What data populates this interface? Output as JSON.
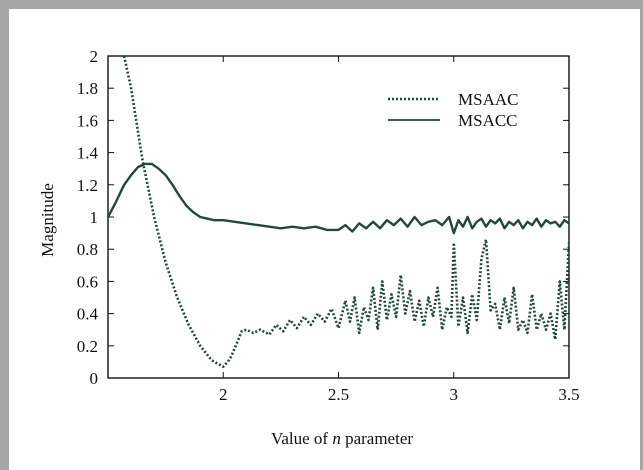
{
  "chart_data": {
    "type": "line",
    "xlabel_prefix": "Value of ",
    "xlabel_var": "n",
    "xlabel_suffix": " parameter",
    "ylabel": "Magnitude",
    "xlim": [
      1.5,
      3.5
    ],
    "ylim": [
      0,
      2
    ],
    "xticks": [
      2,
      2.5,
      3,
      3.5
    ],
    "xtick_labels": [
      "2",
      "2.5",
      "3",
      "3.5"
    ],
    "yticks": [
      0,
      0.2,
      0.4,
      0.6,
      0.8,
      1,
      1.2,
      1.4,
      1.6,
      1.8,
      2
    ],
    "ytick_labels": [
      "0",
      "0.2",
      "0.4",
      "0.6",
      "0.8",
      "1",
      "1.2",
      "1.4",
      "1.6",
      "1.8",
      "2"
    ],
    "legend_position": "top-right",
    "grid": false,
    "line_color": "#1e4a3a",
    "series": [
      {
        "name": "MSAAC",
        "style": "dotted",
        "x": [
          1.57,
          1.6,
          1.65,
          1.7,
          1.75,
          1.8,
          1.85,
          1.9,
          1.95,
          2.0,
          2.03,
          2.06,
          2.08,
          2.1,
          2.13,
          2.16,
          2.2,
          2.23,
          2.26,
          2.29,
          2.32,
          2.35,
          2.38,
          2.41,
          2.44,
          2.47,
          2.5,
          2.53,
          2.55,
          2.57,
          2.59,
          2.61,
          2.63,
          2.65,
          2.67,
          2.69,
          2.71,
          2.73,
          2.75,
          2.77,
          2.79,
          2.81,
          2.83,
          2.85,
          2.87,
          2.89,
          2.91,
          2.93,
          2.95,
          2.97,
          2.99,
          3.0,
          3.02,
          3.04,
          3.06,
          3.08,
          3.1,
          3.12,
          3.14,
          3.16,
          3.18,
          3.2,
          3.22,
          3.24,
          3.26,
          3.28,
          3.3,
          3.32,
          3.34,
          3.36,
          3.38,
          3.4,
          3.42,
          3.44,
          3.46,
          3.48,
          3.5
        ],
        "values": [
          2.0,
          1.8,
          1.35,
          1.0,
          0.72,
          0.5,
          0.33,
          0.2,
          0.11,
          0.07,
          0.12,
          0.22,
          0.29,
          0.3,
          0.28,
          0.3,
          0.27,
          0.33,
          0.29,
          0.36,
          0.31,
          0.38,
          0.33,
          0.4,
          0.35,
          0.43,
          0.31,
          0.48,
          0.35,
          0.5,
          0.28,
          0.44,
          0.36,
          0.56,
          0.3,
          0.6,
          0.36,
          0.52,
          0.38,
          0.64,
          0.4,
          0.54,
          0.35,
          0.48,
          0.32,
          0.5,
          0.38,
          0.56,
          0.3,
          0.44,
          0.38,
          0.84,
          0.32,
          0.5,
          0.28,
          0.52,
          0.36,
          0.74,
          0.86,
          0.42,
          0.46,
          0.3,
          0.5,
          0.34,
          0.56,
          0.3,
          0.36,
          0.28,
          0.52,
          0.3,
          0.4,
          0.3,
          0.4,
          0.24,
          0.6,
          0.3,
          0.84
        ]
      },
      {
        "name": "MSACC",
        "style": "solid",
        "x": [
          1.5,
          1.53,
          1.57,
          1.6,
          1.63,
          1.66,
          1.69,
          1.72,
          1.75,
          1.78,
          1.81,
          1.84,
          1.87,
          1.9,
          1.93,
          1.96,
          2.0,
          2.05,
          2.1,
          2.15,
          2.2,
          2.25,
          2.3,
          2.35,
          2.4,
          2.45,
          2.5,
          2.53,
          2.56,
          2.59,
          2.62,
          2.65,
          2.68,
          2.71,
          2.74,
          2.77,
          2.8,
          2.83,
          2.86,
          2.89,
          2.92,
          2.95,
          2.98,
          3.0,
          3.02,
          3.04,
          3.06,
          3.08,
          3.1,
          3.12,
          3.14,
          3.16,
          3.18,
          3.2,
          3.22,
          3.24,
          3.26,
          3.28,
          3.3,
          3.32,
          3.34,
          3.36,
          3.38,
          3.4,
          3.42,
          3.44,
          3.46,
          3.48,
          3.5
        ],
        "values": [
          1.0,
          1.08,
          1.2,
          1.26,
          1.31,
          1.33,
          1.33,
          1.3,
          1.26,
          1.2,
          1.13,
          1.07,
          1.03,
          1.0,
          0.99,
          0.98,
          0.98,
          0.97,
          0.96,
          0.95,
          0.94,
          0.93,
          0.94,
          0.93,
          0.94,
          0.92,
          0.92,
          0.95,
          0.91,
          0.96,
          0.93,
          0.97,
          0.93,
          0.98,
          0.95,
          0.99,
          0.94,
          1.0,
          0.95,
          0.97,
          0.98,
          0.95,
          1.0,
          0.9,
          0.98,
          0.94,
          1.0,
          0.93,
          0.97,
          0.99,
          0.94,
          0.98,
          0.96,
          0.99,
          0.93,
          0.97,
          0.95,
          0.98,
          0.93,
          0.97,
          0.95,
          0.99,
          0.94,
          0.98,
          0.96,
          0.97,
          0.94,
          0.98,
          0.96
        ]
      }
    ]
  }
}
